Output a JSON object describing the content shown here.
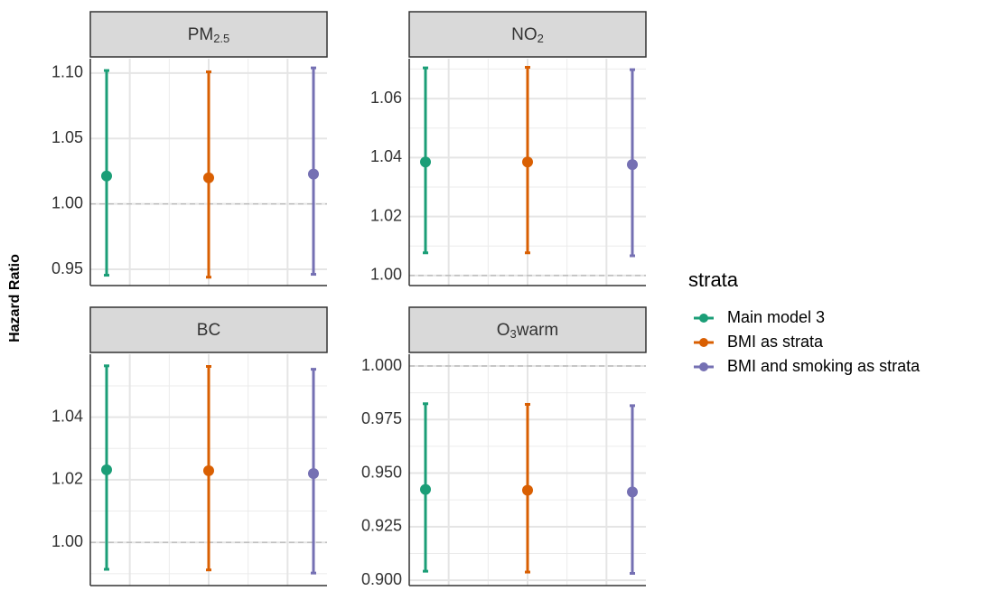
{
  "chart_data": {
    "type": "errorbar",
    "y_label": "Hazard Ratio",
    "legend_title": "strata",
    "grid": true,
    "series": [
      {
        "name": "Main model 3",
        "color": "#1b9e77"
      },
      {
        "name": "BMI as strata",
        "color": "#d95f02"
      },
      {
        "name": "BMI and smoking as strata",
        "color": "#7570b3"
      }
    ],
    "panels": [
      {
        "title": [
          {
            "text": "PM"
          },
          {
            "text": "2.5",
            "sub": true
          }
        ],
        "ylim": [
          0.9376,
          1.111
        ],
        "yticks": [
          {
            "value": 0.95,
            "label": "0.95"
          },
          1.05,
          {
            "value": 1.0,
            "label": "1.00"
          },
          {
            "value": 1.1,
            "label": "1.10"
          }
        ],
        "hline": 1,
        "values": [
          1.0214,
          1.02,
          1.0228
        ],
        "lower": [
          0.9455,
          0.944,
          0.9462
        ],
        "upper": [
          1.102,
          1.101,
          1.104
        ]
      },
      {
        "title": [
          {
            "text": "NO"
          },
          {
            "text": "2",
            "sub": true
          }
        ],
        "ylim": [
          0.9966,
          1.0735
        ],
        "yticks": [
          {
            "value": 1.0,
            "label": "1.00"
          },
          1.02,
          1.04,
          1.06
        ],
        "hline": 1,
        "values": [
          1.0385,
          1.0385,
          1.0376
        ],
        "lower": [
          1.0077,
          1.0077,
          1.0067
        ],
        "upper": [
          1.0704,
          1.0706,
          1.0698
        ]
      },
      {
        "title": [
          {
            "text": "BC"
          }
        ],
        "ylim": [
          0.9862,
          1.0601
        ],
        "yticks": [
          {
            "value": 1.0,
            "label": "1.00"
          },
          1.02,
          1.04
        ],
        "hline": 1,
        "values": [
          1.0232,
          1.0229,
          1.022
        ],
        "lower": [
          0.9914,
          0.9912,
          0.9902
        ],
        "upper": [
          1.0564,
          1.0562,
          1.0553
        ]
      },
      {
        "title": [
          {
            "text": "O"
          },
          {
            "text": "3",
            "sub": true
          },
          {
            "text": "warm"
          }
        ],
        "ylim": [
          0.8975,
          1.0055
        ],
        "yticks": [
          {
            "value": 0.9,
            "label": "0.900"
          },
          0.925,
          {
            "value": 0.95,
            "label": "0.950"
          },
          0.975,
          {
            "value": 1.0,
            "label": "1.000"
          }
        ],
        "hline": 1,
        "values": [
          0.9424,
          0.942,
          0.9412
        ],
        "lower": [
          0.9042,
          0.9038,
          0.9032
        ],
        "upper": [
          0.9824,
          0.9821,
          0.9815
        ]
      }
    ]
  }
}
